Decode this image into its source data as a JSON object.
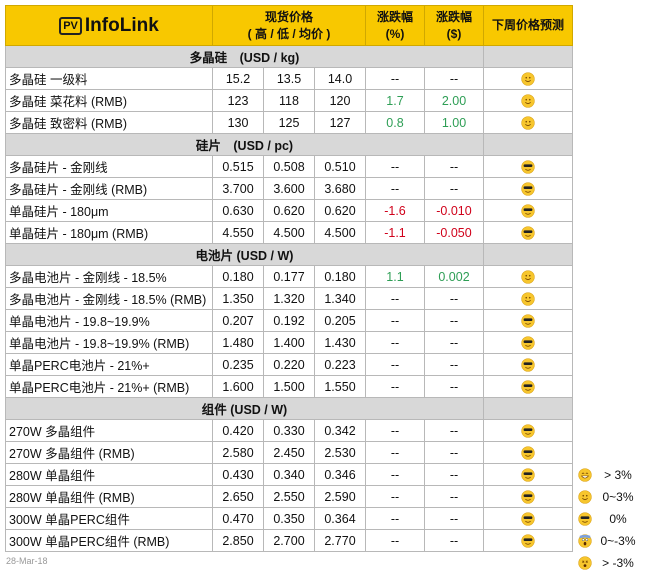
{
  "header": {
    "logo_pv": "PV",
    "logo_text": "InfoLink",
    "price_title": "现货价格",
    "price_sub": "( 高 / 低 / 均价 )",
    "pct_title": "涨跌幅",
    "pct_unit": "(%)",
    "usd_title": "涨跌幅",
    "usd_unit": "($)",
    "forecast_title": "下周价格预测"
  },
  "sections": [
    {
      "title": "多晶硅　(USD / kg)",
      "rows": [
        {
          "name": "多晶硅 一级料",
          "high": "15.2",
          "low": "13.5",
          "avg": "14.0",
          "pct": "--",
          "usd": "--",
          "forecast": "smile"
        },
        {
          "name": "多晶硅 菜花料 (RMB)",
          "high": "123",
          "low": "118",
          "avg": "120",
          "pct": "1.7",
          "usd": "2.00",
          "forecast": "smile"
        },
        {
          "name": "多晶硅 致密料 (RMB)",
          "high": "130",
          "low": "125",
          "avg": "127",
          "pct": "0.8",
          "usd": "1.00",
          "forecast": "smile"
        }
      ]
    },
    {
      "title": "硅片　(USD / pc)",
      "rows": [
        {
          "name": "多晶硅片 - 金刚线",
          "high": "0.515",
          "low": "0.508",
          "avg": "0.510",
          "pct": "--",
          "usd": "--",
          "forecast": "cool"
        },
        {
          "name": "多晶硅片 - 金刚线 (RMB)",
          "high": "3.700",
          "low": "3.600",
          "avg": "3.680",
          "pct": "--",
          "usd": "--",
          "forecast": "cool"
        },
        {
          "name": "单晶硅片 - 180μm",
          "high": "0.630",
          "low": "0.620",
          "avg": "0.620",
          "pct": "-1.6",
          "usd": "-0.010",
          "forecast": "cool"
        },
        {
          "name": "单晶硅片 - 180μm (RMB)",
          "high": "4.550",
          "low": "4.500",
          "avg": "4.500",
          "pct": "-1.1",
          "usd": "-0.050",
          "forecast": "cool"
        }
      ]
    },
    {
      "title": "电池片 (USD / W)",
      "rows": [
        {
          "name": "多晶电池片 - 金刚线 - 18.5%",
          "high": "0.180",
          "low": "0.177",
          "avg": "0.180",
          "pct": "1.1",
          "usd": "0.002",
          "forecast": "smile"
        },
        {
          "name": "多晶电池片 - 金刚线 - 18.5% (RMB)",
          "high": "1.350",
          "low": "1.320",
          "avg": "1.340",
          "pct": "--",
          "usd": "--",
          "forecast": "smile"
        },
        {
          "name": "单晶电池片 - 19.8~19.9%",
          "high": "0.207",
          "low": "0.192",
          "avg": "0.205",
          "pct": "--",
          "usd": "--",
          "forecast": "cool"
        },
        {
          "name": "单晶电池片 - 19.8~19.9% (RMB)",
          "high": "1.480",
          "low": "1.400",
          "avg": "1.430",
          "pct": "--",
          "usd": "--",
          "forecast": "cool"
        },
        {
          "name": "单晶PERC电池片 - 21%+",
          "high": "0.235",
          "low": "0.220",
          "avg": "0.223",
          "pct": "--",
          "usd": "--",
          "forecast": "cool"
        },
        {
          "name": "单晶PERC电池片 - 21%+ (RMB)",
          "high": "1.600",
          "low": "1.500",
          "avg": "1.550",
          "pct": "--",
          "usd": "--",
          "forecast": "cool"
        }
      ]
    },
    {
      "title": "组件 (USD / W)",
      "rows": [
        {
          "name": "270W 多晶组件",
          "high": "0.420",
          "low": "0.330",
          "avg": "0.342",
          "pct": "--",
          "usd": "--",
          "forecast": "cool"
        },
        {
          "name": "270W 多晶组件 (RMB)",
          "high": "2.580",
          "low": "2.450",
          "avg": "2.530",
          "pct": "--",
          "usd": "--",
          "forecast": "cool"
        },
        {
          "name": "280W 单晶组件",
          "high": "0.430",
          "low": "0.340",
          "avg": "0.346",
          "pct": "--",
          "usd": "--",
          "forecast": "cool"
        },
        {
          "name": "280W 单晶组件 (RMB)",
          "high": "2.650",
          "low": "2.550",
          "avg": "2.590",
          "pct": "--",
          "usd": "--",
          "forecast": "cool"
        },
        {
          "name": "300W 单晶PERC组件",
          "high": "0.470",
          "low": "0.350",
          "avg": "0.364",
          "pct": "--",
          "usd": "--",
          "forecast": "cool"
        },
        {
          "name": "300W 单晶PERC组件 (RMB)",
          "high": "2.850",
          "low": "2.700",
          "avg": "2.770",
          "pct": "--",
          "usd": "--",
          "forecast": "cool"
        }
      ]
    }
  ],
  "legend": [
    {
      "icon": "grin",
      "label": "> 3%"
    },
    {
      "icon": "smile",
      "label": "0~3%"
    },
    {
      "icon": "cool",
      "label": "0%"
    },
    {
      "icon": "scream",
      "label": "0~-3%"
    },
    {
      "icon": "astonished",
      "label": "> -3%"
    }
  ],
  "date": "28-Mar-18",
  "colors": {
    "header": "#f8c800",
    "section": "#d8d8d8",
    "positive": "#2e9e55",
    "negative": "#d0021b"
  }
}
